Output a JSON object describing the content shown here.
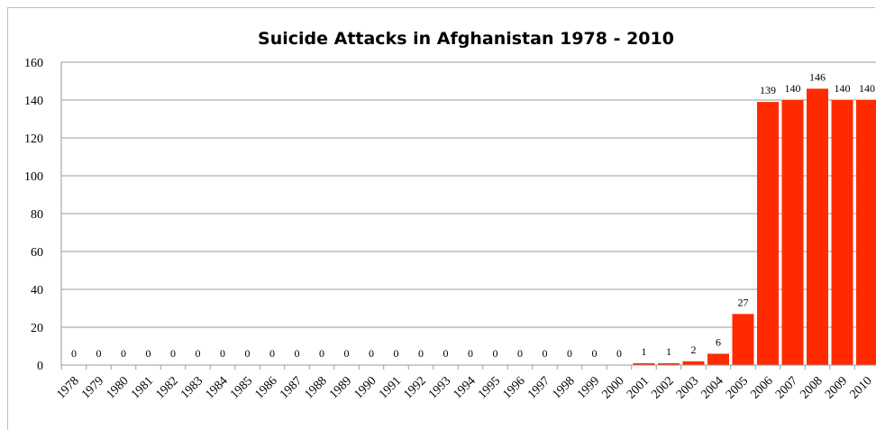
{
  "chart_data": {
    "type": "bar",
    "title": "Suicide Attacks in Afghanistan 1978 - 2010",
    "xlabel": "",
    "ylabel": "",
    "ylim": [
      0,
      160
    ],
    "yticks": [
      0,
      20,
      40,
      60,
      80,
      100,
      120,
      140,
      160
    ],
    "grid": true,
    "legend": "none",
    "bar_color": "#ff2a00",
    "categories": [
      "1978",
      "1979",
      "1980",
      "1981",
      "1982",
      "1983",
      "1984",
      "1985",
      "1986",
      "1987",
      "1988",
      "1989",
      "1990",
      "1991",
      "1992",
      "1993",
      "1994",
      "1995",
      "1996",
      "1997",
      "1998",
      "1999",
      "2000",
      "2001",
      "2002",
      "2003",
      "2004",
      "2005",
      "2006",
      "2007",
      "2008",
      "2009",
      "2010"
    ],
    "values": [
      0,
      0,
      0,
      0,
      0,
      0,
      0,
      0,
      0,
      0,
      0,
      0,
      0,
      0,
      0,
      0,
      0,
      0,
      0,
      0,
      0,
      0,
      0,
      1,
      1,
      2,
      6,
      27,
      139,
      140,
      146,
      140,
      140
    ]
  }
}
